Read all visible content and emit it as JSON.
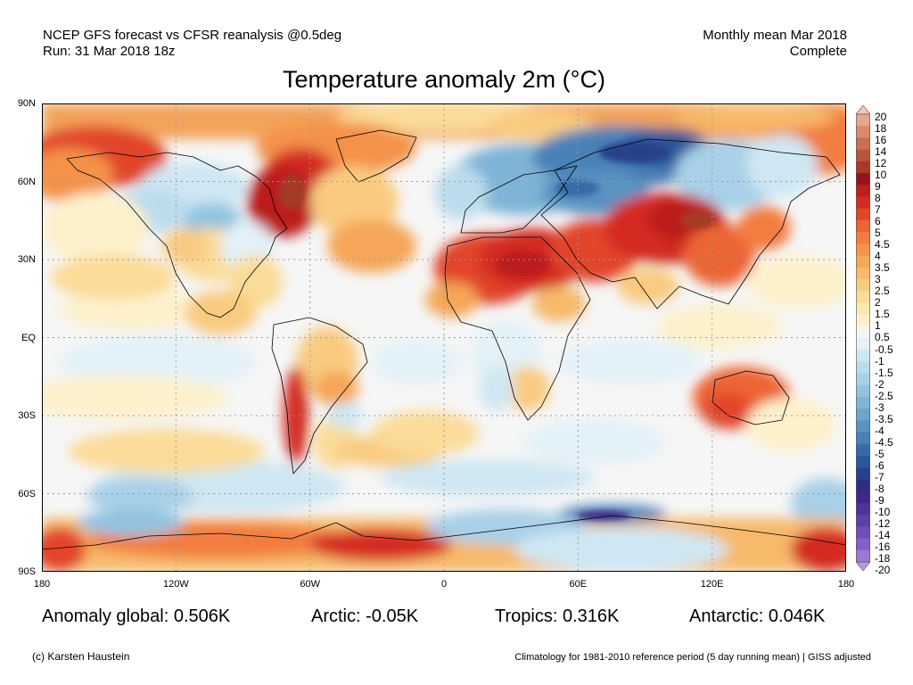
{
  "header": {
    "line1_left": "NCEP GFS forecast vs CFSR reanalysis @0.5deg",
    "line2_left": "Run: 31 Mar 2018 18z",
    "line1_right": "Monthly mean Mar 2018",
    "line2_right": "Complete"
  },
  "title": "Temperature anomaly 2m (°C)",
  "map": {
    "lat_labels": [
      "90N",
      "60N",
      "30N",
      "EQ",
      "30S",
      "60S",
      "90S"
    ],
    "lon_labels": [
      "180",
      "120W",
      "60W",
      "0",
      "60E",
      "120E",
      "180"
    ],
    "regions": [
      "Siberia / Russia cold anomaly",
      "Europe cold anomaly",
      "Sahara / Middle East warm anomaly",
      "Central Asia warm anomaly",
      "Eastern Canada / Greenland warm anomaly",
      "Arctic warm anomaly",
      "Australia warm anomaly",
      "Antarctic coast mixed anomaly"
    ]
  },
  "colorbar": {
    "labels": [
      "20",
      "18",
      "16",
      "14",
      "12",
      "10",
      "9",
      "8",
      "7",
      "6",
      "5",
      "4.5",
      "4",
      "3.5",
      "3",
      "2.5",
      "2",
      "1.5",
      "1",
      "0.5",
      "-0.5",
      "-1",
      "-1.5",
      "-2",
      "-2.5",
      "-3",
      "-3.5",
      "-4",
      "-4.5",
      "-5",
      "-6",
      "-7",
      "-8",
      "-9",
      "-10",
      "-12",
      "-14",
      "-16",
      "-18",
      "-20"
    ],
    "colors": [
      "#f3c7b3",
      "#e6a78c",
      "#d98a6c",
      "#c97052",
      "#b9553b",
      "#a53a25",
      "#93141a",
      "#bb1e1d",
      "#d42a22",
      "#e2452b",
      "#ec6534",
      "#f27d3f",
      "#f4924a",
      "#f5a659",
      "#f7b96b",
      "#f9cb80",
      "#fbdb98",
      "#fce7b1",
      "#fdf1cc",
      "#f5f5f5",
      "#e3f1f8",
      "#cfe7f3",
      "#bcdcee",
      "#a8d0e8",
      "#93c3e0",
      "#7fb4d6",
      "#6ca4cc",
      "#5993c2",
      "#4881b7",
      "#376ba8",
      "#2b579a",
      "#27428a",
      "#2b2f7c",
      "#3b2b87",
      "#4c3498",
      "#5d40a9",
      "#6f4eb9",
      "#8261c6",
      "#9a7bd3",
      "#b49ae0"
    ]
  },
  "stats": {
    "global": "Anomaly global: 0.506K",
    "arctic": "Arctic: -0.05K",
    "tropics": "Tropics: 0.316K",
    "antarctic": "Antarctic: 0.046K"
  },
  "footer": {
    "left": "(c) Karsten Haustein",
    "right": "Climatology for 1981-2010 reference period (5 day running mean) | GISS adjusted"
  }
}
